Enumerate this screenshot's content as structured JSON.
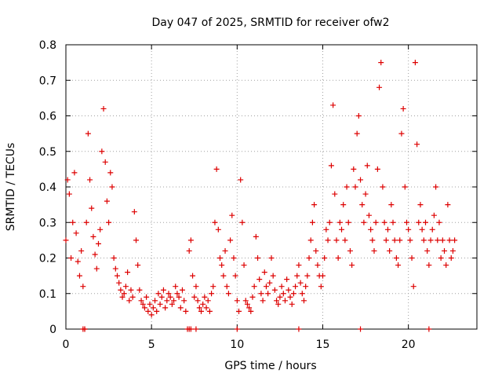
{
  "chart_data": {
    "type": "scatter",
    "title": "Day 047 of 2025, SRMTID for receiver ofw2",
    "xlabel": "GPS time / hours",
    "ylabel": "SRMTID / TECUs",
    "xlim": [
      0,
      24
    ],
    "ylim": [
      0,
      0.8
    ],
    "xticks": [
      0,
      5,
      10,
      15,
      20
    ],
    "yticks": [
      0,
      0.1,
      0.2,
      0.3,
      0.4,
      0.5,
      0.6,
      0.7,
      0.8
    ],
    "ytick_labels": [
      "0",
      "0.1",
      "0.2",
      "0.3",
      "0.4",
      "0.5",
      "0.6",
      "0.7",
      "0.8"
    ],
    "grid": true,
    "marker": "+",
    "color": "#dd0000",
    "series": [
      {
        "name": "SRMTID",
        "x": [
          0.0,
          0.1,
          0.2,
          0.3,
          0.4,
          0.5,
          0.6,
          0.7,
          0.8,
          0.9,
          1.0,
          1.1,
          1.2,
          1.3,
          1.4,
          1.5,
          1.6,
          1.7,
          1.8,
          1.9,
          2.0,
          2.1,
          2.2,
          2.3,
          2.4,
          2.5,
          2.6,
          2.7,
          2.8,
          2.9,
          3.0,
          3.1,
          3.2,
          3.3,
          3.4,
          3.5,
          3.6,
          3.7,
          3.8,
          3.9,
          4.0,
          4.1,
          4.2,
          4.3,
          4.4,
          4.5,
          4.6,
          4.7,
          4.8,
          4.9,
          5.0,
          5.1,
          5.2,
          5.3,
          5.4,
          5.5,
          5.6,
          5.7,
          5.8,
          5.9,
          6.0,
          6.1,
          6.2,
          6.3,
          6.4,
          6.5,
          6.6,
          6.7,
          6.8,
          6.9,
          7.0,
          7.1,
          7.2,
          7.3,
          7.4,
          7.5,
          7.6,
          7.7,
          7.8,
          7.9,
          8.0,
          8.1,
          8.2,
          8.3,
          8.4,
          8.5,
          8.6,
          8.7,
          8.8,
          8.9,
          9.0,
          9.1,
          9.2,
          9.3,
          9.4,
          9.5,
          9.6,
          9.7,
          9.8,
          9.9,
          10.0,
          10.1,
          10.2,
          10.3,
          10.4,
          10.5,
          10.6,
          10.7,
          10.8,
          10.9,
          11.0,
          11.1,
          11.2,
          11.3,
          11.4,
          11.5,
          11.6,
          11.7,
          11.8,
          11.9,
          12.0,
          12.1,
          12.2,
          12.3,
          12.4,
          12.5,
          12.6,
          12.7,
          12.8,
          12.9,
          13.0,
          13.1,
          13.2,
          13.3,
          13.4,
          13.5,
          13.6,
          13.7,
          13.8,
          13.9,
          14.0,
          14.1,
          14.2,
          14.3,
          14.4,
          14.5,
          14.6,
          14.7,
          14.8,
          14.9,
          15.0,
          15.1,
          15.2,
          15.3,
          15.4,
          15.5,
          15.6,
          15.7,
          15.8,
          15.9,
          16.0,
          16.1,
          16.2,
          16.3,
          16.4,
          16.5,
          16.6,
          16.7,
          16.8,
          16.9,
          17.0,
          17.1,
          17.2,
          17.3,
          17.4,
          17.5,
          17.6,
          17.7,
          17.8,
          17.9,
          18.0,
          18.1,
          18.2,
          18.3,
          18.4,
          18.5,
          18.6,
          18.7,
          18.8,
          18.9,
          19.0,
          19.1,
          19.2,
          19.3,
          19.4,
          19.5,
          19.6,
          19.7,
          19.8,
          19.9,
          20.0,
          20.1,
          20.2,
          20.3,
          20.4,
          20.5,
          20.6,
          20.7,
          20.8,
          20.9,
          21.0,
          21.1,
          21.2,
          21.3,
          21.4,
          21.5,
          21.6,
          21.7,
          21.8,
          21.9,
          22.0,
          22.1,
          22.2,
          22.3,
          22.4,
          22.5,
          22.6,
          22.7
        ],
        "y": [
          0.25,
          0.42,
          0.38,
          0.2,
          0.3,
          0.44,
          0.27,
          0.19,
          0.15,
          0.22,
          0.12,
          0.0,
          0.3,
          0.55,
          0.42,
          0.34,
          0.26,
          0.21,
          0.17,
          0.24,
          0.28,
          0.5,
          0.62,
          0.47,
          0.36,
          0.3,
          0.44,
          0.4,
          0.2,
          0.17,
          0.15,
          0.13,
          0.11,
          0.09,
          0.1,
          0.12,
          0.16,
          0.08,
          0.11,
          0.09,
          0.33,
          0.25,
          0.18,
          0.11,
          0.08,
          0.07,
          0.06,
          0.09,
          0.05,
          0.07,
          0.04,
          0.06,
          0.08,
          0.05,
          0.1,
          0.07,
          0.09,
          0.11,
          0.06,
          0.08,
          0.1,
          0.09,
          0.07,
          0.08,
          0.12,
          0.1,
          0.09,
          0.06,
          0.11,
          0.08,
          0.05,
          0.0,
          0.22,
          0.25,
          0.15,
          0.09,
          0.12,
          0.08,
          0.06,
          0.05,
          0.07,
          0.09,
          0.06,
          0.08,
          0.05,
          0.1,
          0.12,
          0.3,
          0.45,
          0.28,
          0.2,
          0.18,
          0.15,
          0.22,
          0.12,
          0.1,
          0.25,
          0.32,
          0.2,
          0.15,
          0.08,
          0.05,
          0.42,
          0.3,
          0.18,
          0.08,
          0.07,
          0.06,
          0.05,
          0.09,
          0.12,
          0.26,
          0.2,
          0.14,
          0.1,
          0.08,
          0.16,
          0.12,
          0.1,
          0.13,
          0.2,
          0.15,
          0.11,
          0.08,
          0.07,
          0.09,
          0.12,
          0.1,
          0.08,
          0.14,
          0.11,
          0.09,
          0.07,
          0.1,
          0.12,
          0.15,
          0.18,
          0.13,
          0.1,
          0.08,
          0.12,
          0.15,
          0.2,
          0.25,
          0.3,
          0.35,
          0.22,
          0.18,
          0.15,
          0.12,
          0.15,
          0.2,
          0.28,
          0.25,
          0.3,
          0.46,
          0.63,
          0.38,
          0.25,
          0.2,
          0.3,
          0.28,
          0.35,
          0.25,
          0.4,
          0.3,
          0.22,
          0.18,
          0.45,
          0.4,
          0.55,
          0.6,
          0.42,
          0.35,
          0.3,
          0.38,
          0.46,
          0.32,
          0.28,
          0.25,
          0.22,
          0.3,
          0.45,
          0.68,
          0.75,
          0.4,
          0.3,
          0.25,
          0.28,
          0.22,
          0.35,
          0.3,
          0.25,
          0.2,
          0.18,
          0.25,
          0.55,
          0.62,
          0.4,
          0.3,
          0.28,
          0.25,
          0.2,
          0.12,
          0.75,
          0.52,
          0.3,
          0.35,
          0.28,
          0.25,
          0.3,
          0.22,
          0.18,
          0.25,
          0.28,
          0.32,
          0.4,
          0.25,
          0.3,
          0.2,
          0.25,
          0.22,
          0.18,
          0.35,
          0.25,
          0.2,
          0.22,
          0.25
        ]
      }
    ],
    "zero_markers_x": [
      1.0,
      1.1,
      7.2,
      7.3,
      7.6,
      10.0,
      13.6,
      17.2,
      21.2
    ]
  }
}
